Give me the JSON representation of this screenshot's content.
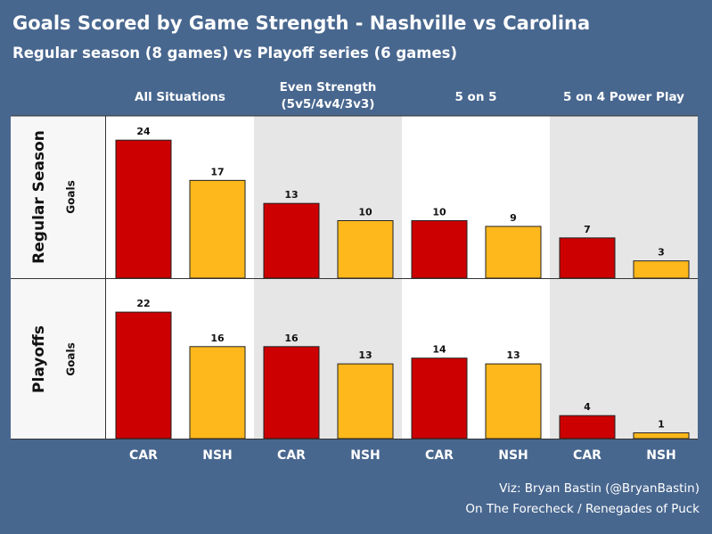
{
  "title": "Goals Scored by Game Strength - Nashville vs Carolina",
  "subtitle": "Regular season (8 games) vs Playoff series (6 games)",
  "credits": {
    "line1": "Viz: Bryan Bastin (@BryanBastin)",
    "line2": "On The Forecheck / Renegades of Puck"
  },
  "colors": {
    "CAR": "#cc0000",
    "NSH": "#ffb81c",
    "background": "#48678f",
    "panel_light": "#ffffff",
    "panel_shaded": "#e6e6e6"
  },
  "chart_data": {
    "type": "bar",
    "column_headers": [
      [
        "All Situations"
      ],
      [
        "Even Strength",
        "(5v5/4v4/3v3)"
      ],
      [
        "5 on 5"
      ],
      [
        "5 on 4 Power Play"
      ]
    ],
    "row_headers": [
      "Regular Season",
      "Playoffs"
    ],
    "ylabel": "Goals",
    "categories": [
      "CAR",
      "NSH"
    ],
    "ylim": [
      0,
      25
    ],
    "grid": false,
    "legend": "none",
    "panels": [
      {
        "row": "Regular Season",
        "column": "All Situations",
        "values": [
          24,
          17
        ]
      },
      {
        "row": "Regular Season",
        "column": "Even Strength",
        "values": [
          13,
          10
        ]
      },
      {
        "row": "Regular Season",
        "column": "5 on 5",
        "values": [
          10,
          9
        ]
      },
      {
        "row": "Regular Season",
        "column": "5 on 4 Power Play",
        "values": [
          7,
          3
        ]
      },
      {
        "row": "Playoffs",
        "column": "All Situations",
        "values": [
          22,
          16
        ]
      },
      {
        "row": "Playoffs",
        "column": "Even Strength",
        "values": [
          16,
          13
        ]
      },
      {
        "row": "Playoffs",
        "column": "5 on 5",
        "values": [
          14,
          13
        ]
      },
      {
        "row": "Playoffs",
        "column": "5 on 4 Power Play",
        "values": [
          4,
          1
        ]
      }
    ]
  }
}
